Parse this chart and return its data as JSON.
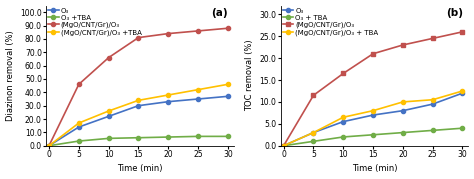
{
  "time": [
    0,
    5,
    10,
    15,
    20,
    25,
    30
  ],
  "panel_a": {
    "ylabel": "Diazinon removal (%)",
    "xlabel": "Time (min)",
    "label": "(a)",
    "ylim": [
      0,
      105
    ],
    "yticks": [
      0.0,
      10.0,
      20.0,
      30.0,
      40.0,
      50.0,
      60.0,
      70.0,
      80.0,
      90.0,
      100.0
    ],
    "ytick_labels": [
      "0.0",
      "10.0",
      "20.0",
      "30.0",
      "40.0",
      "50.0",
      "60.0",
      "70.0",
      "80.0",
      "90.0",
      "100.0"
    ],
    "series": [
      {
        "name": "O₃",
        "color": "#4472C4",
        "marker": "o",
        "values": [
          0,
          14,
          22,
          30,
          33,
          35,
          37
        ]
      },
      {
        "name": "O₃ +TBA",
        "color": "#70AD47",
        "marker": "o",
        "values": [
          0,
          3.5,
          5.5,
          6,
          6.5,
          7,
          7
        ]
      },
      {
        "name": "(MgO/CNT/Gr)/O₃",
        "color": "#C0504D",
        "marker": "o",
        "values": [
          0,
          46,
          66,
          81,
          84,
          86,
          88
        ]
      },
      {
        "name": "(MgO/CNT/Gr)/O₃ +TBA",
        "color": "#FFC000",
        "marker": "o",
        "values": [
          0,
          17,
          26,
          34,
          38,
          42,
          46
        ]
      }
    ]
  },
  "panel_b": {
    "ylabel": "TOC removal (%)",
    "xlabel": "Time (min)",
    "label": "(b)",
    "ylim": [
      0,
      32
    ],
    "yticks": [
      0.0,
      5.0,
      10.0,
      15.0,
      20.0,
      25.0,
      30.0
    ],
    "ytick_labels": [
      "0.0",
      "5.0",
      "10.0",
      "15.0",
      "20.0",
      "25.0",
      "30.0"
    ],
    "series": [
      {
        "name": "O₃",
        "color": "#4472C4",
        "marker": "o",
        "values": [
          0,
          3,
          5.5,
          7,
          8,
          9.5,
          12
        ]
      },
      {
        "name": "O₃ + TBA",
        "color": "#70AD47",
        "marker": "o",
        "values": [
          0,
          1,
          2,
          2.5,
          3,
          3.5,
          4
        ]
      },
      {
        "name": "(MgO/CNT/Gr)/O₃",
        "color": "#C0504D",
        "marker": "s",
        "values": [
          0,
          11.5,
          16.5,
          21,
          23,
          24.5,
          26
        ]
      },
      {
        "name": "(MgO/CNT/Gr)/O₃ + TBA",
        "color": "#FFC000",
        "marker": "o",
        "values": [
          0,
          3,
          6.5,
          8,
          10,
          10.5,
          12.5
        ]
      }
    ]
  },
  "background_color": "#ffffff",
  "linewidth": 1.2,
  "markersize": 3,
  "fontsize_label": 6,
  "fontsize_tick": 5.5,
  "fontsize_legend": 5.0,
  "fontsize_panel_label": 7.5
}
